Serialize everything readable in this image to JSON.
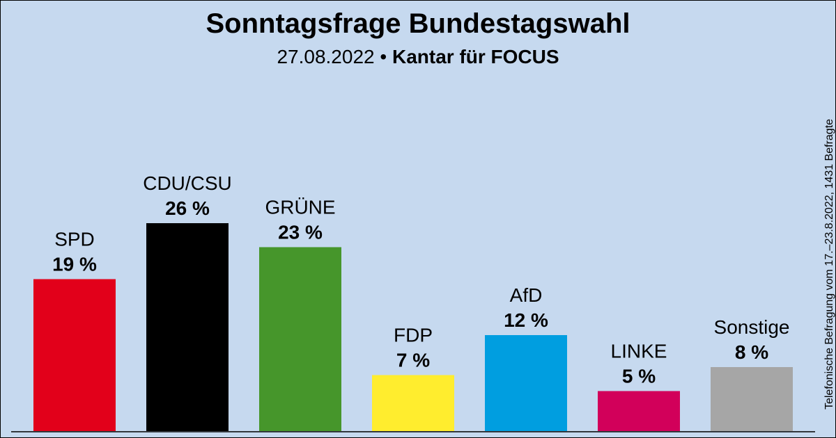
{
  "chart_data": {
    "type": "bar",
    "title": "Sonntagsfrage Bundestagswahl",
    "subtitle": {
      "date": "27.08.2022",
      "separator": " • ",
      "source": "Kantar für FOCUS"
    },
    "side_note": "Telefonische Befragung vom 17.–23.8.2022, 1431 Befragte",
    "categories": [
      "SPD",
      "CDU/CSU",
      "GRÜNE",
      "FDP",
      "AfD",
      "LINKE",
      "Sonstige"
    ],
    "values": [
      19,
      26,
      23,
      7,
      12,
      5,
      8
    ],
    "value_labels": [
      "19 %",
      "26 %",
      "23 %",
      "7 %",
      "12 %",
      "5 %",
      "8 %"
    ],
    "colors": [
      "#e2001a",
      "#000000",
      "#46962b",
      "#ffed2e",
      "#009ee0",
      "#d2005a",
      "#a6a6a6"
    ],
    "unit": "%",
    "ylim": [
      0,
      26
    ],
    "grid": false,
    "legend": "none"
  }
}
